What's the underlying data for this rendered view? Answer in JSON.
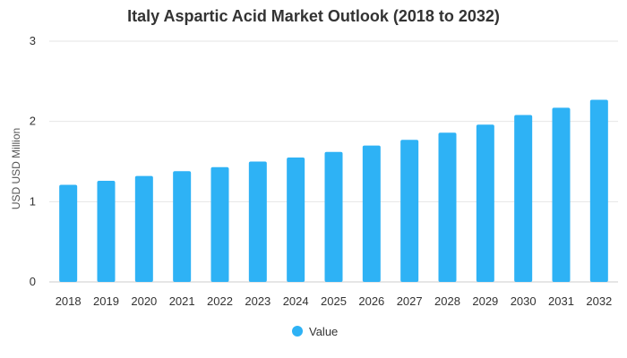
{
  "chart_data": {
    "type": "bar",
    "title": "Italy Aspartic Acid Market Outlook (2018 to 2032)",
    "xlabel": "",
    "ylabel": "USD USD Million",
    "ylim": [
      0,
      3
    ],
    "yticks": [
      0,
      1,
      2,
      3
    ],
    "grid": true,
    "legend_position": "bottom",
    "categories": [
      "2018",
      "2019",
      "2020",
      "2021",
      "2022",
      "2023",
      "2024",
      "2025",
      "2026",
      "2027",
      "2028",
      "2029",
      "2030",
      "2031",
      "2032"
    ],
    "series": [
      {
        "name": "Value",
        "color": "#2eb2f5",
        "values": [
          1.21,
          1.26,
          1.32,
          1.38,
          1.43,
          1.5,
          1.55,
          1.62,
          1.7,
          1.77,
          1.86,
          1.96,
          2.08,
          2.17,
          2.27
        ]
      }
    ]
  }
}
